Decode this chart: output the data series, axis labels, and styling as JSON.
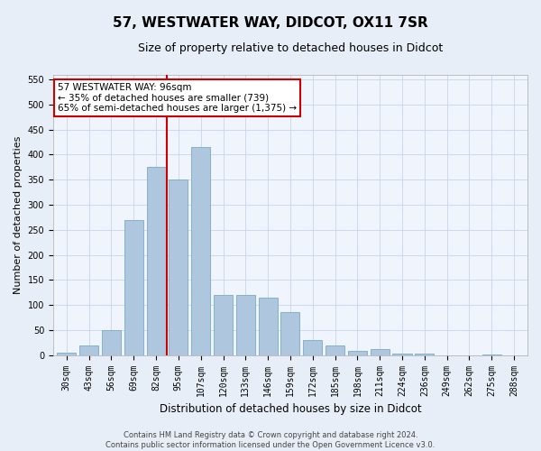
{
  "title": "57, WESTWATER WAY, DIDCOT, OX11 7SR",
  "subtitle": "Size of property relative to detached houses in Didcot",
  "xlabel": "Distribution of detached houses by size in Didcot",
  "ylabel": "Number of detached properties",
  "categories": [
    "30sqm",
    "43sqm",
    "56sqm",
    "69sqm",
    "82sqm",
    "95sqm",
    "107sqm",
    "120sqm",
    "133sqm",
    "146sqm",
    "159sqm",
    "172sqm",
    "185sqm",
    "198sqm",
    "211sqm",
    "224sqm",
    "236sqm",
    "249sqm",
    "262sqm",
    "275sqm",
    "288sqm"
  ],
  "values": [
    5,
    20,
    50,
    270,
    375,
    350,
    415,
    120,
    120,
    115,
    85,
    30,
    20,
    8,
    12,
    3,
    3,
    0,
    0,
    2,
    0
  ],
  "bar_color": "#aec6de",
  "bar_edgecolor": "#7aaac8",
  "vline_color": "#cc0000",
  "annotation_text": "57 WESTWATER WAY: 96sqm\n← 35% of detached houses are smaller (739)\n65% of semi-detached houses are larger (1,375) →",
  "annotation_box_facecolor": "white",
  "annotation_box_edgecolor": "#cc0000",
  "footer_line1": "Contains HM Land Registry data © Crown copyright and database right 2024.",
  "footer_line2": "Contains public sector information licensed under the Open Government Licence v3.0.",
  "ylim": [
    0,
    560
  ],
  "yticks": [
    0,
    50,
    100,
    150,
    200,
    250,
    300,
    350,
    400,
    450,
    500,
    550
  ],
  "bg_color": "#e8eef8",
  "plot_bg_color": "#f0f4fc",
  "grid_color": "#c8d4e8",
  "title_fontsize": 11,
  "subtitle_fontsize": 9,
  "ylabel_fontsize": 8,
  "xlabel_fontsize": 8.5,
  "tick_fontsize": 7,
  "footer_fontsize": 6,
  "annot_fontsize": 7.5,
  "vline_x_index": 4.5
}
